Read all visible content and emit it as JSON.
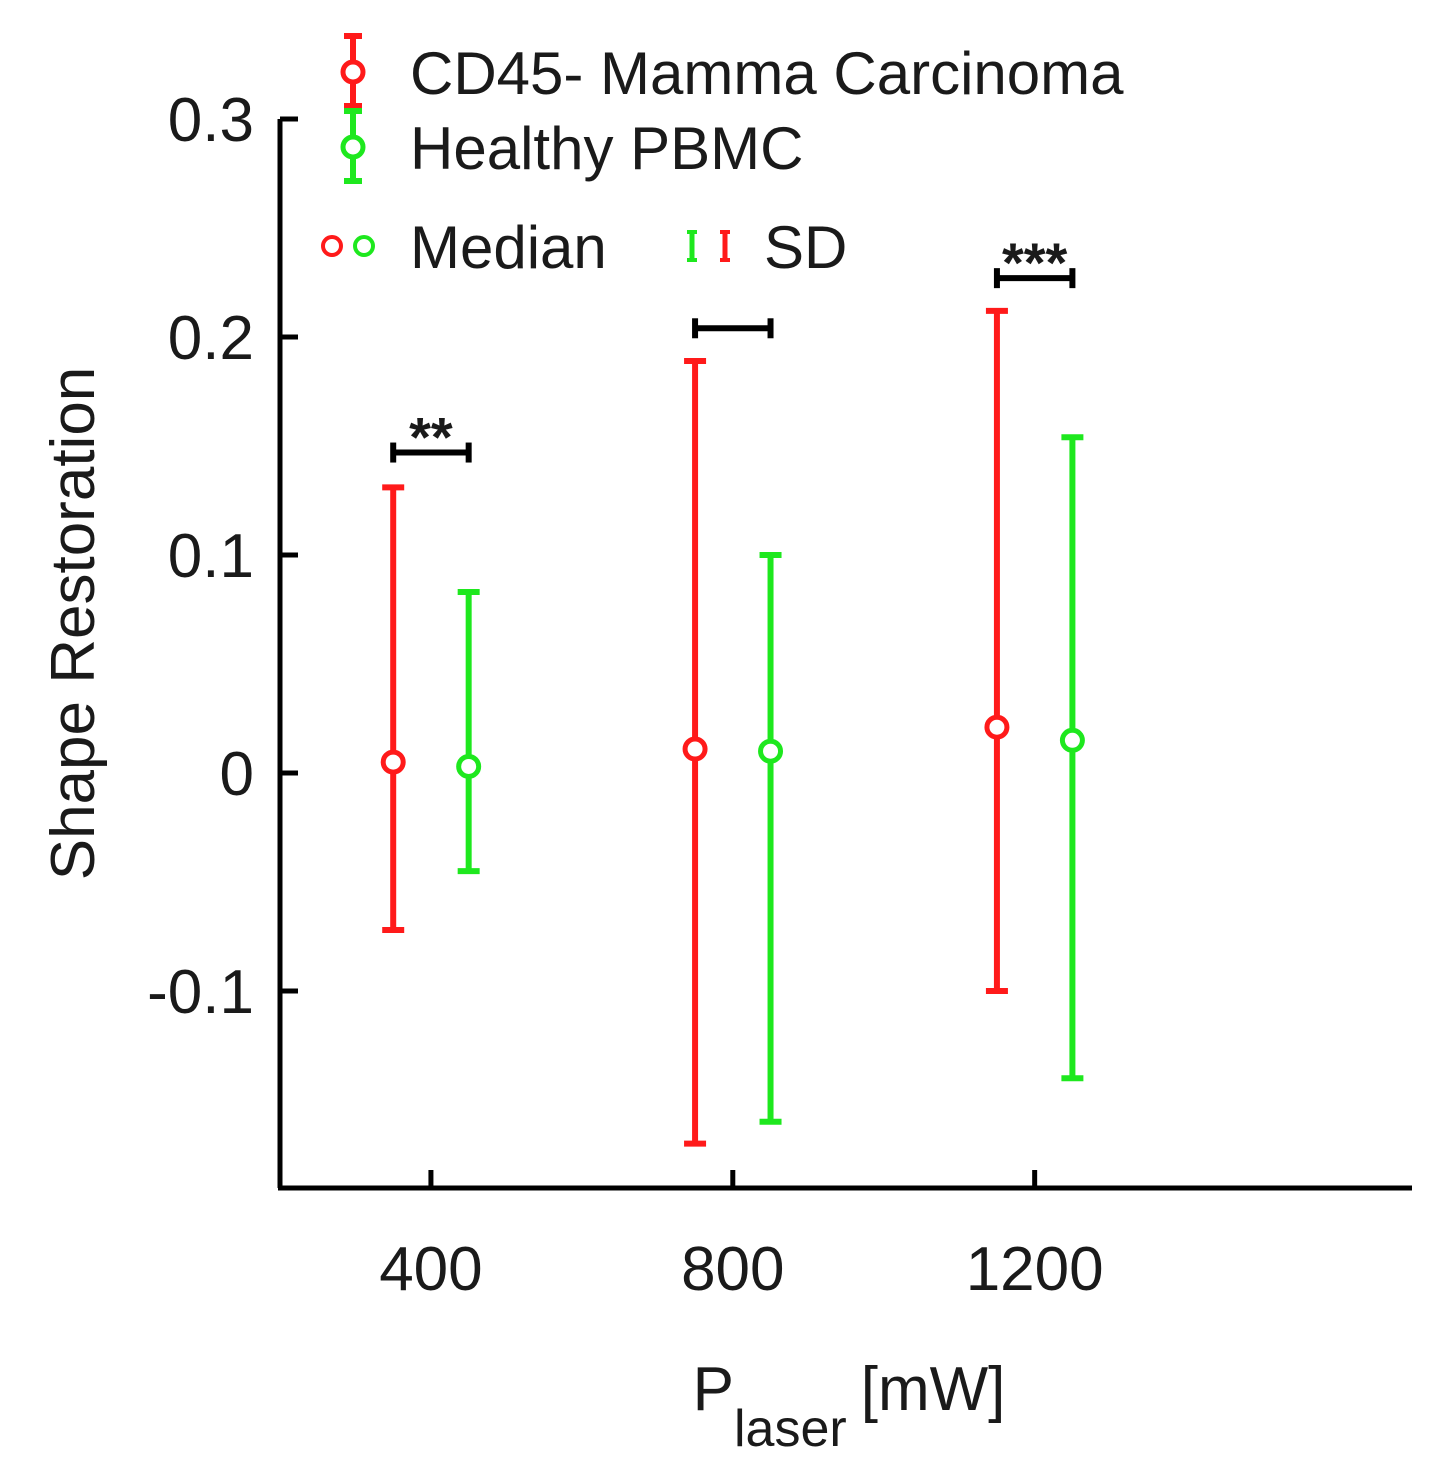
{
  "chart_data": {
    "type": "errorbar",
    "xlabel_main": "P",
    "xlabel_sub": "laser",
    "xlabel_unit": "[mW]",
    "ylabel": "Shape Restoration",
    "xlim": [
      200,
      1700
    ],
    "ylim": [
      -0.19,
      0.3
    ],
    "x_ticks": [
      400,
      800,
      1200
    ],
    "x_tick_labels": [
      "400",
      "800",
      "1200"
    ],
    "y_ticks": [
      -0.1,
      0,
      0.1,
      0.2,
      0.3
    ],
    "y_tick_labels": [
      "-0.1",
      "0",
      "0.1",
      "0.2",
      "0.3"
    ],
    "series": [
      {
        "name": "CD45- Mamma Carcinoma",
        "color": "#ff1a1a",
        "x": [
          350,
          750,
          1150
        ],
        "median": [
          0.005,
          0.011,
          0.021
        ],
        "lower": [
          -0.072,
          -0.17,
          -0.1
        ],
        "upper": [
          0.131,
          0.189,
          0.212
        ]
      },
      {
        "name": "Healthy PBMC",
        "color": "#1ee81e",
        "x": [
          450,
          850,
          1250
        ],
        "median": [
          0.003,
          0.01,
          0.015
        ],
        "lower": [
          -0.045,
          -0.16,
          -0.14
        ],
        "upper": [
          0.083,
          0.1,
          0.154
        ]
      }
    ],
    "significance": [
      {
        "x1": 350,
        "x2": 450,
        "y": 0.147,
        "label": "**"
      },
      {
        "x1": 750,
        "x2": 850,
        "y": 0.204,
        "label": ""
      },
      {
        "x1": 1150,
        "x2": 1250,
        "y": 0.227,
        "label": "***"
      }
    ],
    "legend": {
      "position": "top-left",
      "entries": [
        "CD45- Mamma Carcinoma",
        "Healthy PBMC"
      ],
      "median_label": "Median",
      "sd_label": "SD"
    }
  }
}
